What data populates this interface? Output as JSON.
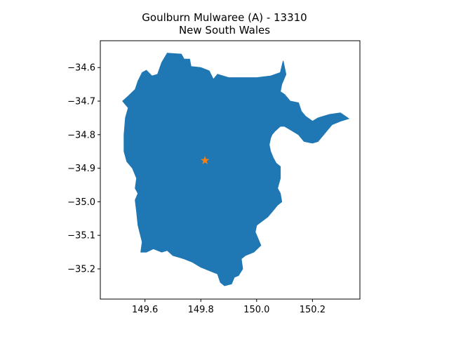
{
  "title": "Goulburn Mulwaree (A) - 13310",
  "subtitle": "New South Wales",
  "map": {
    "region_name": "Goulburn Mulwaree (A)",
    "region_code": "13310",
    "state": "New South Wales",
    "fill_color": "#1f77b4",
    "marker": {
      "symbol": "star",
      "lon": 149.815,
      "lat": -34.877,
      "color": "#ff7f0e"
    }
  },
  "chart_data": {
    "type": "map",
    "x_ticks": [
      149.6,
      149.8,
      150.0,
      150.2
    ],
    "x_tick_labels": [
      "149.6",
      "149.8",
      "150.0",
      "150.2"
    ],
    "y_ticks": [
      -34.6,
      -34.7,
      -34.8,
      -34.9,
      -35.0,
      -35.1,
      -35.2
    ],
    "y_tick_labels": [
      "−34.6",
      "−34.7",
      "−34.8",
      "−34.9",
      "−35.0",
      "−35.1",
      "−35.2"
    ],
    "xlim": [
      149.44,
      150.37
    ],
    "ylim": [
      -35.29,
      -34.52
    ],
    "grid": false,
    "region_outline": [
      [
        149.68,
        -34.557
      ],
      [
        149.73,
        -34.56
      ],
      [
        149.74,
        -34.575
      ],
      [
        149.76,
        -34.575
      ],
      [
        149.765,
        -34.597
      ],
      [
        149.8,
        -34.6
      ],
      [
        149.815,
        -34.605
      ],
      [
        149.83,
        -34.61
      ],
      [
        149.845,
        -34.635
      ],
      [
        149.86,
        -34.62
      ],
      [
        149.9,
        -34.63
      ],
      [
        149.95,
        -34.63
      ],
      [
        150.0,
        -34.63
      ],
      [
        150.05,
        -34.625
      ],
      [
        150.085,
        -34.615
      ],
      [
        150.095,
        -34.58
      ],
      [
        150.1,
        -34.6
      ],
      [
        150.105,
        -34.62
      ],
      [
        150.09,
        -34.65
      ],
      [
        150.085,
        -34.672
      ],
      [
        150.1,
        -34.68
      ],
      [
        150.12,
        -34.7
      ],
      [
        150.15,
        -34.705
      ],
      [
        150.16,
        -34.73
      ],
      [
        150.175,
        -34.745
      ],
      [
        150.2,
        -34.76
      ],
      [
        150.22,
        -34.75
      ],
      [
        150.26,
        -34.74
      ],
      [
        150.3,
        -34.735
      ],
      [
        150.33,
        -34.752
      ],
      [
        150.3,
        -34.76
      ],
      [
        150.27,
        -34.77
      ],
      [
        150.25,
        -34.79
      ],
      [
        150.22,
        -34.82
      ],
      [
        150.2,
        -34.825
      ],
      [
        150.17,
        -34.82
      ],
      [
        150.15,
        -34.8
      ],
      [
        150.12,
        -34.785
      ],
      [
        150.1,
        -34.775
      ],
      [
        150.085,
        -34.775
      ],
      [
        150.065,
        -34.79
      ],
      [
        150.055,
        -34.8
      ],
      [
        150.05,
        -34.81
      ],
      [
        150.045,
        -34.83
      ],
      [
        150.05,
        -34.85
      ],
      [
        150.06,
        -34.87
      ],
      [
        150.07,
        -34.885
      ],
      [
        150.085,
        -34.895
      ],
      [
        150.085,
        -34.93
      ],
      [
        150.075,
        -34.96
      ],
      [
        150.085,
        -34.975
      ],
      [
        150.09,
        -35.0
      ],
      [
        150.075,
        -35.01
      ],
      [
        150.06,
        -35.025
      ],
      [
        150.04,
        -35.045
      ],
      [
        150.0,
        -35.07
      ],
      [
        149.995,
        -35.09
      ],
      [
        150.005,
        -35.11
      ],
      [
        150.015,
        -35.13
      ],
      [
        149.99,
        -35.15
      ],
      [
        149.96,
        -35.16
      ],
      [
        149.945,
        -35.17
      ],
      [
        149.95,
        -35.2
      ],
      [
        149.935,
        -35.22
      ],
      [
        149.92,
        -35.225
      ],
      [
        149.91,
        -35.245
      ],
      [
        149.885,
        -35.25
      ],
      [
        149.87,
        -35.24
      ],
      [
        149.86,
        -35.215
      ],
      [
        149.83,
        -35.205
      ],
      [
        149.8,
        -35.195
      ],
      [
        149.77,
        -35.18
      ],
      [
        149.74,
        -35.17
      ],
      [
        149.7,
        -35.16
      ],
      [
        149.68,
        -35.145
      ],
      [
        149.66,
        -35.15
      ],
      [
        149.63,
        -35.14
      ],
      [
        149.605,
        -35.15
      ],
      [
        149.585,
        -35.15
      ],
      [
        149.59,
        -35.12
      ],
      [
        149.575,
        -35.07
      ],
      [
        149.57,
        -35.03
      ],
      [
        149.565,
        -34.995
      ],
      [
        149.575,
        -34.975
      ],
      [
        149.565,
        -34.96
      ],
      [
        149.57,
        -34.93
      ],
      [
        149.555,
        -34.9
      ],
      [
        149.535,
        -34.88
      ],
      [
        149.525,
        -34.85
      ],
      [
        149.525,
        -34.8
      ],
      [
        149.53,
        -34.75
      ],
      [
        149.54,
        -34.72
      ],
      [
        149.52,
        -34.7
      ],
      [
        149.54,
        -34.685
      ],
      [
        149.565,
        -34.665
      ],
      [
        149.575,
        -34.64
      ],
      [
        149.59,
        -34.615
      ],
      [
        149.605,
        -34.608
      ],
      [
        149.625,
        -34.625
      ],
      [
        149.645,
        -34.62
      ],
      [
        149.66,
        -34.585
      ],
      [
        149.68,
        -34.557
      ]
    ]
  }
}
